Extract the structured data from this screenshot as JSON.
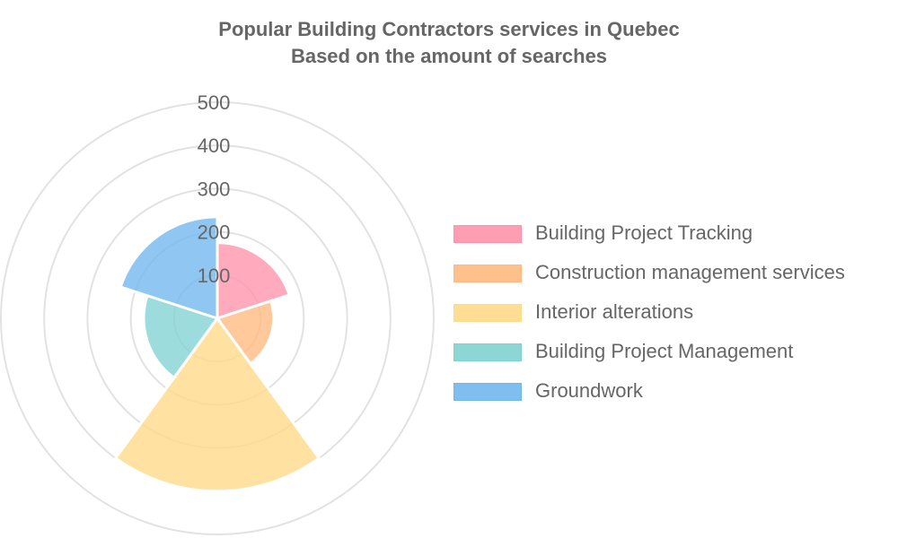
{
  "chart_data": {
    "type": "polarArea",
    "title": [
      "Popular Building Contractors services in Quebec",
      "Based on the amount of searches"
    ],
    "categories": [
      "Building Project Tracking",
      "Construction management services",
      "Interior alterations",
      "Building Project Management",
      "Groundwork"
    ],
    "values": [
      175,
      130,
      400,
      170,
      235
    ],
    "colors": [
      "#ff92aa",
      "#ffba7f",
      "#ffda87",
      "#80d2d2",
      "#70b7ee"
    ],
    "rlim": [
      0,
      500
    ],
    "r_ticks": [
      100,
      200,
      300,
      400,
      500
    ],
    "r_tick_labels": [
      "100",
      "200",
      "300",
      "400",
      "500"
    ],
    "grid": true,
    "legend_position": "right"
  }
}
